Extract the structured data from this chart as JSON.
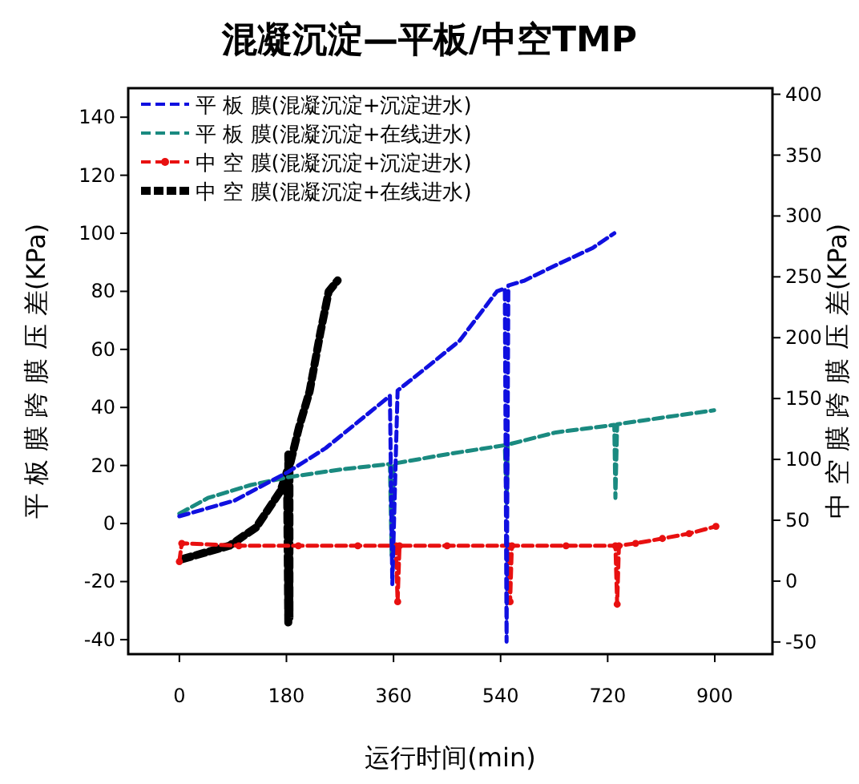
{
  "chart_data": {
    "type": "line",
    "title": "混凝沉淀—平板/中空TMP",
    "xlabel": "运行时间(min)",
    "ylabel": "平 板 膜 跨 膜 压 差(KPa)",
    "y2label": "中 空 膜 跨 膜 压 差(KPa)",
    "xlim": [
      -86,
      997
    ],
    "xticks": [
      0,
      180,
      360,
      540,
      720,
      900
    ],
    "ylim": [
      -45,
      150
    ],
    "yticks": [
      -40,
      -20,
      0,
      20,
      40,
      60,
      80,
      100,
      120,
      140
    ],
    "y2lim": [
      -60,
      405
    ],
    "y2ticks": [
      -50,
      0,
      50,
      100,
      150,
      200,
      250,
      300,
      350,
      400
    ],
    "grid": false,
    "legend": "top left",
    "series": [
      {
        "name": "平 板 膜(混凝沉淀+沉淀进水)",
        "color": "#1010e0",
        "line_style": "dashed",
        "marker": "none",
        "x": [
          0,
          93,
          183,
          246,
          300,
          354,
          358,
          367,
          417,
          471,
          534,
          547,
          550,
          553,
          579,
          633,
          695,
          731
        ],
        "values": [
          2.5,
          7.9,
          17.8,
          26,
          35,
          44,
          -20.9,
          45.8,
          54,
          63,
          80,
          81,
          -40.7,
          82,
          83.6,
          89,
          95,
          100
        ]
      },
      {
        "name": "平 板 膜(混凝沉淀+在线进水)",
        "color": "#1a8a80",
        "line_style": "dashed",
        "marker": "none",
        "x": [
          0,
          48,
          120,
          183,
          273,
          354,
          357,
          360,
          453,
          547,
          550,
          552,
          633,
          731,
          733,
          736,
          812,
          899
        ],
        "values": [
          3.4,
          8.8,
          13.3,
          16,
          18.7,
          20.5,
          -11,
          20.6,
          24,
          27,
          7,
          27.2,
          31.4,
          34,
          8.8,
          34.2,
          36.5,
          39
        ],
        "axis": "y"
      },
      {
        "name": "中 空 膜(混凝沉淀+沉淀进水)",
        "color": "#e81010",
        "line_style": "dashed",
        "marker": "circle",
        "axis": "y2",
        "x": [
          0,
          4,
          100,
          200,
          300,
          364,
          367,
          370,
          450,
          553,
          556,
          559,
          650,
          733,
          736,
          739,
          767,
          812,
          857,
          902
        ],
        "values": [
          16,
          31,
          29,
          29,
          29,
          29,
          -17,
          29,
          29,
          29,
          -17,
          29,
          29,
          29,
          -19,
          29,
          31,
          35,
          39,
          45
        ]
      },
      {
        "name": "中 空 膜(混凝沉淀+在线进水)",
        "color": "#000000",
        "line_style": "dashed",
        "marker": "none",
        "axis": "y2",
        "x": [
          4,
          84,
          129,
          170,
          181,
          183,
          183,
          185,
          185,
          183,
          201,
          219,
          237,
          251,
          266
        ],
        "values": [
          18,
          29,
          44,
          74,
          90,
          -34,
          104,
          -30,
          100,
          90,
          126,
          156,
          204,
          238,
          247
        ]
      }
    ]
  }
}
